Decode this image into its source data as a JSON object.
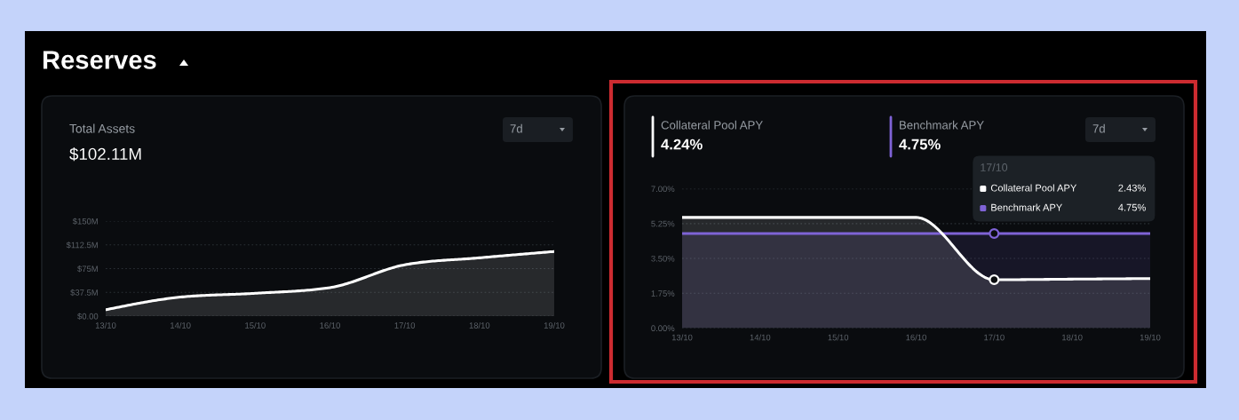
{
  "chart_data": [
    {
      "type": "other",
      "title": "Reserves"
    },
    {
      "type": "area",
      "title": "Total Assets",
      "subtitle": "$102.11M",
      "annotations": [
        "7d"
      ],
      "categories": [
        "13/10",
        "14/10",
        "15/10",
        "16/10",
        "17/10",
        "18/10",
        "19/10"
      ],
      "series": [
        {
          "color": "#ffffff",
          "values": [
            10,
            30,
            36,
            45,
            81,
            92,
            102
          ]
        }
      ],
      "ylim": [
        0,
        150
      ],
      "yticks": [
        {
          "value": 0,
          "label": "$0.00"
        },
        {
          "value": 37.5,
          "label": "$37.5M"
        },
        {
          "value": 75,
          "label": "$75M"
        },
        {
          "value": 112.5,
          "label": "$112.5M"
        },
        {
          "value": 150,
          "label": "$150M"
        }
      ],
      "grid": "y"
    },
    {
      "type": "area",
      "legend": "top",
      "annotations": [
        "4.24%",
        "4.75%",
        "17/10",
        "2.43%",
        "4.75%",
        "7d"
      ],
      "categories": [
        "13/10",
        "14/10",
        "15/10",
        "16/10",
        "17/10",
        "18/10",
        "19/10"
      ],
      "series": [
        {
          "name": "Collateral Pool APY",
          "color": "#ffffff",
          "values": [
            5.56,
            5.56,
            5.56,
            5.56,
            2.43,
            2.46,
            2.49
          ]
        },
        {
          "name": "Benchmark APY",
          "color": "#7f63d6",
          "values": [
            4.75,
            4.75,
            4.75,
            4.75,
            4.75,
            4.75,
            4.75
          ]
        },
        {
          "type": "scatter",
          "x": [
            "17/10",
            "17/10"
          ],
          "values": [
            2.43,
            4.75
          ],
          "colors": [
            "#ffffff",
            "#7f63d6"
          ]
        }
      ],
      "ylim": [
        0,
        7
      ],
      "yticks": [
        {
          "value": 0,
          "label": "0.00%"
        },
        {
          "value": 1.75,
          "label": "1.75%"
        },
        {
          "value": 3.5,
          "label": "3.50%"
        },
        {
          "value": 5.25,
          "label": "5.25%"
        },
        {
          "value": 7,
          "label": "7.00%"
        }
      ],
      "grid": "y"
    }
  ]
}
